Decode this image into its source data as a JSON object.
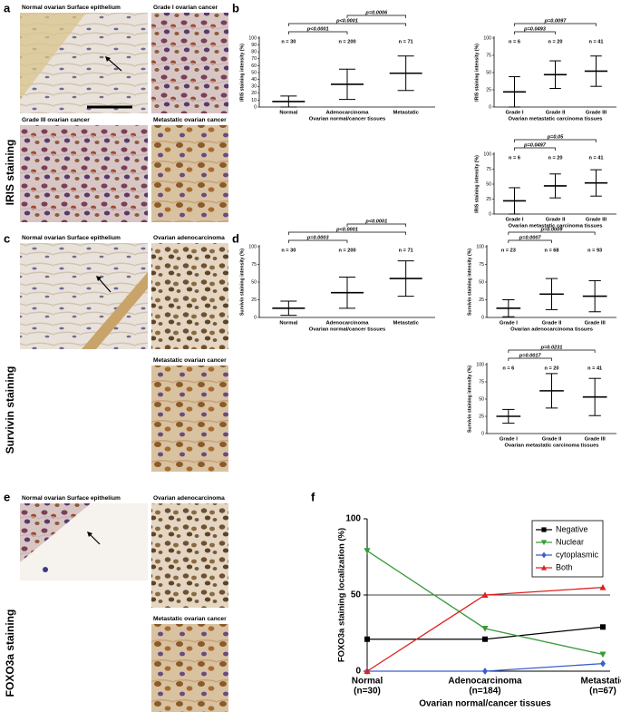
{
  "panels": [
    {
      "letter": "a",
      "label": "IRIS staining",
      "images": [
        "Normal ovarian Surface epithelium",
        "Grade I ovarian cancer",
        "Grade III ovarian cancer",
        "Metastatic ovarian cancer"
      ]
    },
    {
      "letter": "c",
      "label": "Survivin staining",
      "images": [
        "Normal ovarian Surface epithelium",
        "Ovarian adenocarcinoma",
        "Metastatic ovarian cancer"
      ]
    },
    {
      "letter": "e",
      "label": "FOXO3a staining",
      "images": [
        "Normal ovarian Surface epithelium",
        "Ovarian adenocarcinoma",
        "Metastatic ovarian cancer"
      ]
    }
  ],
  "chart_data": [
    {
      "type": "dotplot",
      "panel": "b",
      "ylabel": "IRIS staining intensity (%)",
      "xlabel": "Ovarian normal/cancer tissues",
      "categories": [
        "Normal",
        "Adenocarcinoma",
        "Metastatic"
      ],
      "n_labels": [
        "n = 30",
        "n = 200",
        "n = 71"
      ],
      "values": [
        8,
        33,
        49
      ],
      "errors": [
        8,
        22,
        25
      ],
      "ylim": [
        0,
        100
      ],
      "yticks": [
        0,
        10,
        20,
        30,
        40,
        50,
        60,
        70,
        80,
        90,
        100
      ],
      "comparisons": [
        {
          "groups": [
            "Normal",
            "Adenocarcinoma"
          ],
          "label": "p<0.0001"
        },
        {
          "groups": [
            "Normal",
            "Metastatic"
          ],
          "label": "p<0.0001"
        },
        {
          "groups": [
            "Adenocarcinoma",
            "Metastatic"
          ],
          "label": "p=0.0006"
        }
      ]
    },
    {
      "type": "dotplot",
      "ylabel": "IRIS staining intensity (%)",
      "xlabel": "Ovarian metastatic carcinoma tissues",
      "categories": [
        "Grade I",
        "Grade II",
        "Grade III"
      ],
      "n_labels": [
        "n = 6",
        "n = 20",
        "n = 41"
      ],
      "values": [
        22,
        47,
        52
      ],
      "errors": [
        22,
        20,
        22
      ],
      "ylim": [
        0,
        100
      ],
      "yticks": [
        0,
        25,
        50,
        75,
        100
      ],
      "comparisons": [
        {
          "groups": [
            "Grade I",
            "Grade II"
          ],
          "label": "p=0.0493"
        },
        {
          "groups": [
            "Grade I",
            "Grade III"
          ],
          "label": "p=0.0097"
        }
      ]
    },
    {
      "type": "dotplot",
      "ylabel": "IRIS staining intensity (%)",
      "xlabel": "Ovarian metastatic carcinoma tissues",
      "categories": [
        "Grade I",
        "Grade II",
        "Grade III"
      ],
      "n_labels": [
        "n = 6",
        "n = 20",
        "n = 41"
      ],
      "values": [
        22,
        47,
        52
      ],
      "errors": [
        22,
        20,
        22
      ],
      "ylim": [
        0,
        100
      ],
      "yticks": [
        0,
        25,
        50,
        75,
        100
      ],
      "comparisons": [
        {
          "groups": [
            "Grade I",
            "Grade II"
          ],
          "label": "p=0.0497"
        },
        {
          "groups": [
            "Grade I",
            "Grade III"
          ],
          "label": "p=0.05"
        }
      ]
    },
    {
      "type": "dotplot",
      "panel": "d",
      "ylabel": "Survivin staining intensity (%)",
      "xlabel": "Ovarian normal/cancer tissues",
      "categories": [
        "Normal",
        "Adenocarcinoma",
        "Metastatic"
      ],
      "n_labels": [
        "n = 30",
        "n = 200",
        "n = 71"
      ],
      "values": [
        13,
        35,
        55
      ],
      "errors": [
        10,
        22,
        25
      ],
      "ylim": [
        0,
        100
      ],
      "yticks": [
        0,
        25,
        50,
        75,
        100
      ],
      "comparisons": [
        {
          "groups": [
            "Normal",
            "Adenocarcinoma"
          ],
          "label": "p=0.0003"
        },
        {
          "groups": [
            "Normal",
            "Metastatic"
          ],
          "label": "p<0.0001"
        },
        {
          "groups": [
            "Adenocarcinoma",
            "Metastatic"
          ],
          "label": "p<0.0001"
        }
      ]
    },
    {
      "type": "dotplot",
      "ylabel": "Survivin staining intensity (%)",
      "xlabel": "Ovarian adenocarcinoma tissues",
      "categories": [
        "Grade I",
        "Grade II",
        "Grade III"
      ],
      "n_labels": [
        "n = 23",
        "n = 68",
        "n = 93"
      ],
      "values": [
        13,
        33,
        30
      ],
      "errors": [
        12,
        22,
        22
      ],
      "ylim": [
        0,
        100
      ],
      "yticks": [
        0,
        25,
        50,
        75,
        100
      ],
      "comparisons": [
        {
          "groups": [
            "Grade I",
            "Grade II"
          ],
          "label": "p=0.0007"
        },
        {
          "groups": [
            "Grade I",
            "Grade III"
          ],
          "label": "p=0.0009"
        }
      ]
    },
    {
      "type": "dotplot",
      "ylabel": "Survivin staining intensity (%)",
      "xlabel": "Ovarian metastatic carcinoma tissues",
      "categories": [
        "Grade I",
        "Grade II",
        "Grade III"
      ],
      "n_labels": [
        "n = 6",
        "n = 20",
        "n = 41"
      ],
      "values": [
        25,
        62,
        53
      ],
      "errors": [
        10,
        25,
        27
      ],
      "ylim": [
        0,
        100
      ],
      "yticks": [
        0,
        25,
        50,
        75,
        100
      ],
      "comparisons": [
        {
          "groups": [
            "Grade I",
            "Grade II"
          ],
          "label": "p=0.0017"
        },
        {
          "groups": [
            "Grade I",
            "Grade III"
          ],
          "label": "p=0.0231"
        }
      ]
    },
    {
      "type": "line",
      "panel": "f",
      "ylabel": "FOXO3a staining localization (%)",
      "xlabel": "Ovarian normal/cancer tissues",
      "categories": [
        "Normal",
        "Adenocarcinoma",
        "Metastatic"
      ],
      "category_notes": [
        "(n=30)",
        "(n=184)",
        "(n=67)"
      ],
      "ylim": [
        0,
        100
      ],
      "yticks": [
        0,
        50,
        100
      ],
      "hline": 50,
      "legend": "upper right",
      "series": [
        {
          "name": "Negative",
          "color": "#000000",
          "marker": "square",
          "values": [
            21,
            21,
            29
          ]
        },
        {
          "name": "Nuclear",
          "color": "#3a9a3a",
          "marker": "triangle-down",
          "values": [
            79,
            28,
            11
          ]
        },
        {
          "name": "cytoplasmic",
          "color": "#3a5fcd",
          "marker": "diamond",
          "values": [
            0,
            0,
            5
          ]
        },
        {
          "name": "Both",
          "color": "#e02020",
          "marker": "triangle",
          "values": [
            0,
            50,
            55
          ]
        }
      ]
    }
  ]
}
